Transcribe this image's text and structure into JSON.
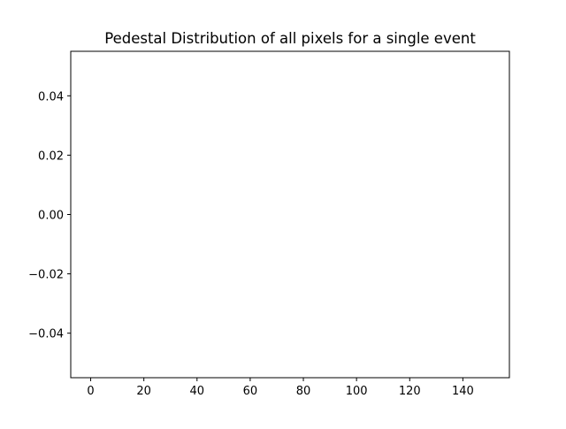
{
  "chart_data": {
    "type": "line",
    "title": "Pedestal Distribution of all pixels for a single event",
    "xlabel": "",
    "ylabel": "",
    "xlim": [
      -7.5,
      157.5
    ],
    "ylim": [
      -0.055,
      0.055
    ],
    "x_ticks": [
      0,
      20,
      40,
      60,
      80,
      100,
      120,
      140
    ],
    "x_tick_labels": [
      "0",
      "20",
      "40",
      "60",
      "80",
      "100",
      "120",
      "140"
    ],
    "y_ticks": [
      0.04,
      0.02,
      0.0,
      -0.02,
      -0.04
    ],
    "y_tick_labels": [
      "0.04",
      "0.02",
      "0.00",
      "−0.02",
      "−0.04"
    ],
    "series": [],
    "grid": false,
    "legend": "none"
  }
}
